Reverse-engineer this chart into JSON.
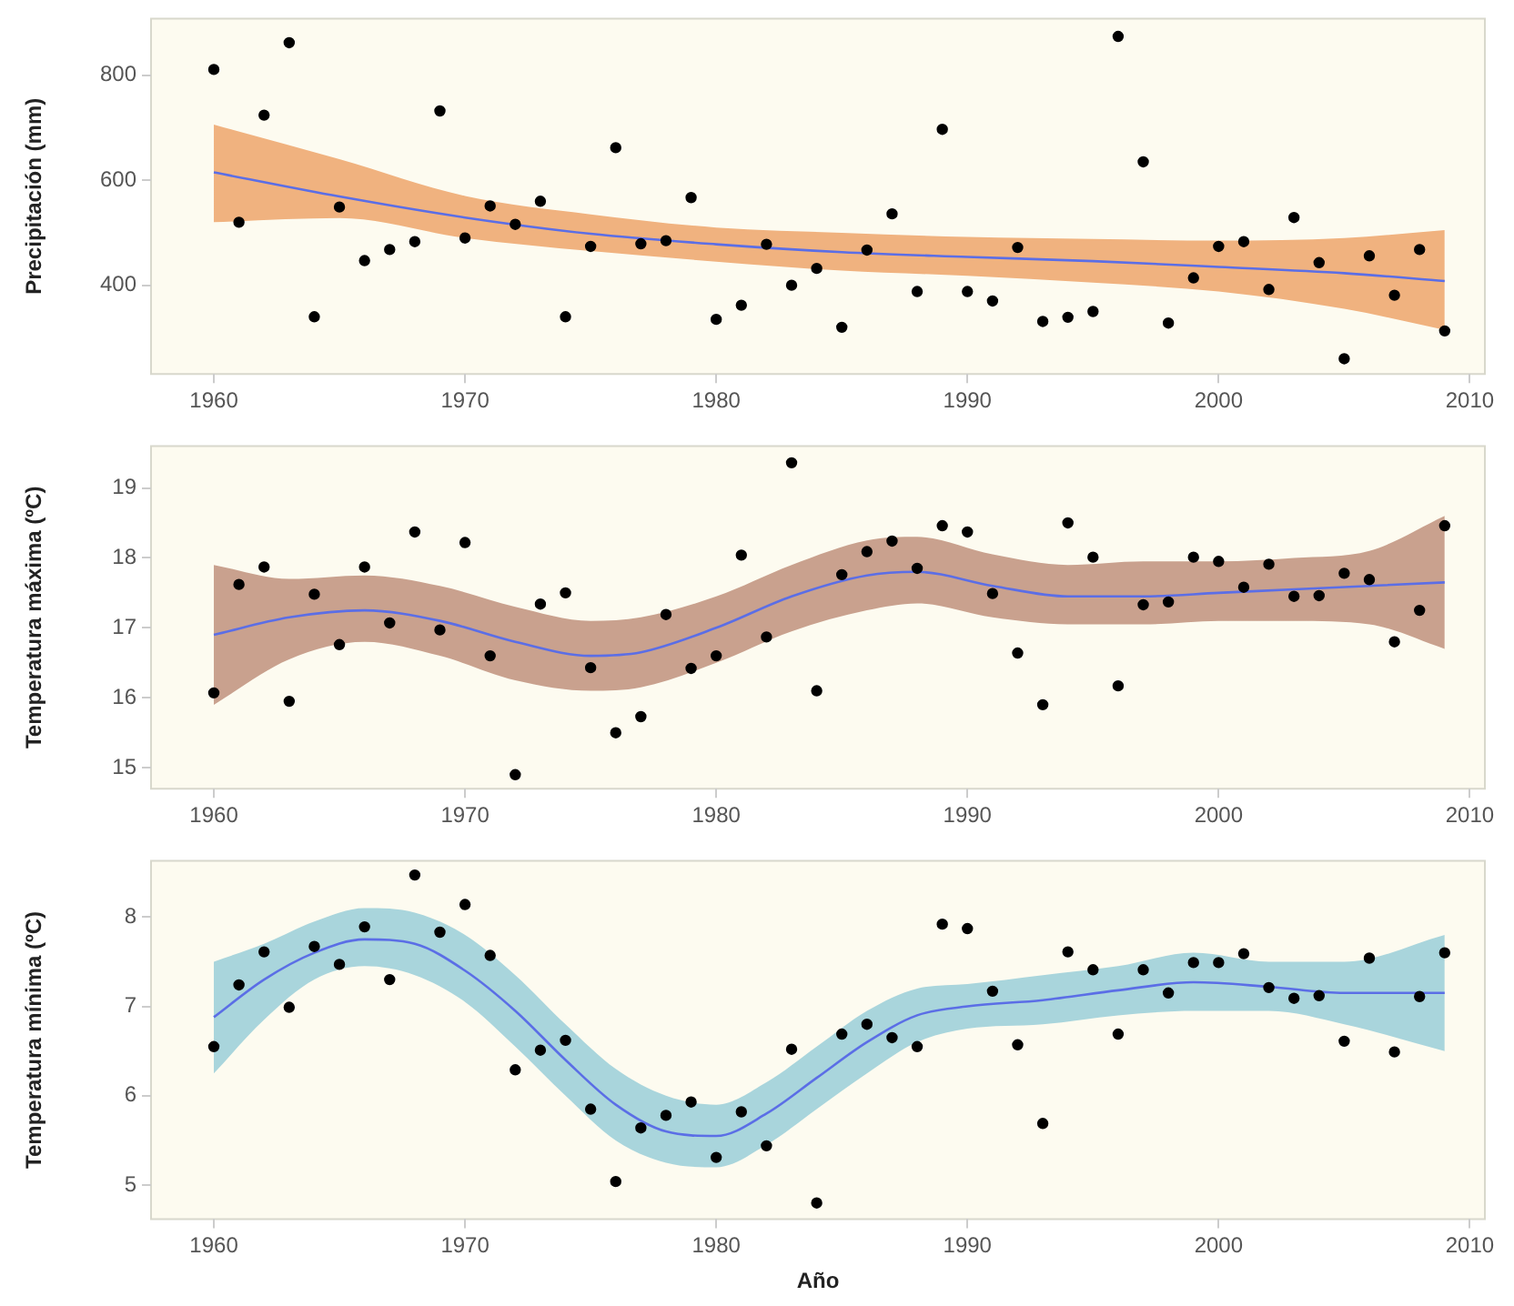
{
  "chart_data": [
    {
      "type": "scatter",
      "ylabel": "Precipitación (mm)",
      "xlim": [
        1957.5,
        2010.6
      ],
      "xticks": [
        1960,
        1970,
        1980,
        1990,
        2000,
        2010
      ],
      "ylim": [
        231,
        908
      ],
      "yticks": [
        400,
        600,
        800
      ],
      "grid": false,
      "legend": false,
      "tick_labels": "xy",
      "series": [
        {
          "color": "#000000",
          "marker": "circle",
          "x": [
            1960,
            1961,
            1962,
            1963,
            1964,
            1965,
            1966,
            1967,
            1968,
            1969,
            1970,
            1971,
            1972,
            1973,
            1974,
            1975,
            1976,
            1977,
            1978,
            1979,
            1980,
            1981,
            1982,
            1983,
            1984,
            1985,
            1986,
            1987,
            1988,
            1989,
            1990,
            1991,
            1992,
            1993,
            1994,
            1995,
            1996,
            1997,
            1998,
            1999,
            2000,
            2001,
            2002,
            2003,
            2004,
            2005,
            2006,
            2007,
            2008,
            2009
          ],
          "values": [
            811,
            520,
            724,
            862,
            340,
            549,
            447,
            468,
            483,
            732,
            490,
            551,
            516,
            560,
            340,
            474,
            662,
            479,
            485,
            567,
            335,
            362,
            478,
            400,
            432,
            320,
            467,
            536,
            388,
            697,
            388,
            370,
            472,
            331,
            339,
            350,
            874,
            635,
            328,
            414,
            474,
            483,
            392,
            529,
            443,
            260,
            456,
            381,
            468,
            313
          ]
        },
        {
          "type": "line",
          "marker": "none",
          "color": "#5b6ee6",
          "colors": [
            "#f0b27f",
            "#f0b27f",
            "#f0b27f",
            "#f0b27f",
            "#f0b27f",
            "#f0b27f",
            "#f0b27f",
            "#f0b27f",
            "#f0b27f",
            "#f0b27f",
            "#f0b27f"
          ],
          "x": [
            1960,
            1965,
            1970,
            1975,
            1980,
            1985,
            1990,
            1995,
            2000,
            2005,
            2009
          ],
          "values": [
            615,
            569,
            529,
            498,
            478,
            463,
            454,
            446,
            435,
            423,
            408
          ],
          "lower": [
            520,
            528,
            490,
            465,
            445,
            428,
            418,
            405,
            388,
            355,
            315
          ],
          "upper": [
            706,
            640,
            570,
            535,
            510,
            500,
            492,
            488,
            485,
            490,
            505
          ]
        }
      ]
    },
    {
      "type": "scatter",
      "ylabel": "Temperatura máxima (ºC)",
      "xlim": [
        1957.5,
        2010.6
      ],
      "xticks": [
        1960,
        1970,
        1980,
        1990,
        2000,
        2010
      ],
      "ylim": [
        14.7,
        19.6
      ],
      "yticks": [
        15,
        16,
        17,
        18,
        19
      ],
      "grid": false,
      "legend": false,
      "tick_labels": "xy",
      "series": [
        {
          "color": "#000000",
          "marker": "circle",
          "x": [
            1960,
            1961,
            1962,
            1963,
            1964,
            1965,
            1966,
            1967,
            1968,
            1969,
            1970,
            1971,
            1972,
            1973,
            1974,
            1975,
            1976,
            1977,
            1978,
            1979,
            1980,
            1981,
            1982,
            1983,
            1984,
            1985,
            1986,
            1987,
            1988,
            1989,
            1990,
            1991,
            1992,
            1993,
            1994,
            1995,
            1996,
            1997,
            1998,
            1999,
            2000,
            2001,
            2002,
            2003,
            2004,
            2005,
            2006,
            2007,
            2008,
            2009
          ],
          "values": [
            16.07,
            17.62,
            17.87,
            15.95,
            17.48,
            16.76,
            17.87,
            17.07,
            18.37,
            16.97,
            18.22,
            16.6,
            14.9,
            17.34,
            17.5,
            16.43,
            15.5,
            15.73,
            17.19,
            16.42,
            16.6,
            18.04,
            16.87,
            19.36,
            16.1,
            17.76,
            18.09,
            18.24,
            17.85,
            18.46,
            18.37,
            17.49,
            16.64,
            15.9,
            18.5,
            18.01,
            16.17,
            17.33,
            17.37,
            18.01,
            17.95,
            17.58,
            17.91,
            17.45,
            17.46,
            17.78,
            17.69,
            16.8,
            17.25,
            18.46
          ]
        },
        {
          "type": "line",
          "marker": "none",
          "color": "#5b6ee6",
          "colors": [
            "#c9a18e",
            "#c9a18e",
            "#c9a18e",
            "#c9a18e",
            "#c9a18e",
            "#c9a18e",
            "#c9a18e",
            "#c9a18e",
            "#c9a18e",
            "#c9a18e",
            "#c9a18e",
            "#c9a18e",
            "#c9a18e",
            "#c9a18e",
            "#c9a18e",
            "#c9a18e",
            "#c9a18e",
            "#c9a18e"
          ],
          "x": [
            1960,
            1963,
            1966,
            1969,
            1972,
            1975,
            1977,
            1980,
            1983,
            1986,
            1988,
            1991,
            1994,
            1997,
            2000,
            2003,
            2006,
            2009
          ],
          "values": [
            16.9,
            17.15,
            17.25,
            17.1,
            16.8,
            16.6,
            16.65,
            17.0,
            17.45,
            17.75,
            17.8,
            17.6,
            17.45,
            17.45,
            17.5,
            17.55,
            17.6,
            17.65
          ],
          "lower": [
            15.9,
            16.55,
            16.8,
            16.6,
            16.25,
            16.1,
            16.15,
            16.5,
            16.95,
            17.25,
            17.35,
            17.15,
            17.05,
            17.05,
            17.1,
            17.1,
            17.05,
            16.7
          ],
          "upper": [
            17.9,
            17.7,
            17.75,
            17.6,
            17.3,
            17.1,
            17.15,
            17.45,
            17.9,
            18.25,
            18.3,
            18.05,
            17.9,
            17.95,
            17.95,
            18.0,
            18.1,
            18.6
          ]
        }
      ]
    },
    {
      "type": "scatter",
      "xlabel": "Año",
      "ylabel": "Temperatura mínima (ºC)",
      "xlim": [
        1957.5,
        2010.6
      ],
      "xticks": [
        1960,
        1970,
        1980,
        1990,
        2000,
        2010
      ],
      "ylim": [
        4.62,
        8.63
      ],
      "yticks": [
        5,
        6,
        7,
        8
      ],
      "grid": false,
      "legend": false,
      "tick_labels": "xy",
      "series": [
        {
          "color": "#000000",
          "marker": "circle",
          "x": [
            1960,
            1961,
            1962,
            1963,
            1964,
            1965,
            1966,
            1967,
            1968,
            1969,
            1970,
            1971,
            1972,
            1973,
            1974,
            1975,
            1976,
            1977,
            1978,
            1979,
            1980,
            1981,
            1982,
            1983,
            1984,
            1985,
            1986,
            1987,
            1988,
            1989,
            1990,
            1991,
            1992,
            1993,
            1994,
            1995,
            1996,
            1997,
            1998,
            1999,
            2000,
            2001,
            2002,
            2003,
            2004,
            2005,
            2006,
            2007,
            2008,
            2009
          ],
          "values": [
            6.55,
            7.24,
            7.61,
            6.99,
            7.67,
            7.47,
            7.89,
            7.3,
            8.47,
            7.83,
            8.14,
            7.57,
            6.29,
            6.51,
            6.62,
            5.85,
            5.04,
            5.64,
            5.78,
            5.93,
            5.31,
            5.82,
            5.44,
            6.52,
            4.8,
            6.69,
            6.8,
            6.65,
            6.55,
            7.92,
            7.87,
            7.17,
            6.57,
            5.69,
            7.61,
            7.41,
            6.69,
            7.41,
            7.15,
            7.49,
            7.49,
            7.59,
            7.21,
            7.09,
            7.12,
            6.61,
            7.54,
            6.49,
            7.11,
            7.6
          ]
        },
        {
          "type": "line",
          "marker": "none",
          "color": "#5b6ee6",
          "colors": [
            "#a9d5dc",
            "#a9d5dc",
            "#a9d5dc",
            "#a9d5dc",
            "#a9d5dc",
            "#a9d5dc",
            "#a9d5dc",
            "#a9d5dc",
            "#a9d5dc",
            "#a9d5dc",
            "#a9d5dc",
            "#a9d5dc",
            "#a9d5dc",
            "#a9d5dc",
            "#a9d5dc",
            "#a9d5dc",
            "#a9d5dc",
            "#a9d5dc",
            "#a9d5dc",
            "#a9d5dc",
            "#a9d5dc",
            "#a9d5dc"
          ],
          "x": [
            1960,
            1962,
            1964,
            1966,
            1968,
            1970,
            1972,
            1974,
            1976,
            1978,
            1980,
            1982,
            1984,
            1986,
            1988,
            1990,
            1993,
            1996,
            1999,
            2002,
            2005,
            2009
          ],
          "values": [
            6.88,
            7.3,
            7.6,
            7.75,
            7.7,
            7.4,
            6.95,
            6.4,
            5.9,
            5.6,
            5.55,
            5.8,
            6.2,
            6.6,
            6.9,
            7.0,
            7.07,
            7.18,
            7.27,
            7.22,
            7.15,
            7.15
          ],
          "lower": [
            6.25,
            6.85,
            7.3,
            7.45,
            7.35,
            7.05,
            6.55,
            6.0,
            5.5,
            5.25,
            5.2,
            5.45,
            5.85,
            6.25,
            6.6,
            6.75,
            6.8,
            6.9,
            6.95,
            6.95,
            6.8,
            6.5
          ],
          "upper": [
            7.5,
            7.7,
            7.95,
            8.1,
            8.05,
            7.8,
            7.35,
            6.8,
            6.3,
            6.0,
            5.9,
            6.15,
            6.55,
            6.95,
            7.2,
            7.25,
            7.35,
            7.45,
            7.6,
            7.5,
            7.5,
            7.8
          ]
        }
      ]
    }
  ]
}
